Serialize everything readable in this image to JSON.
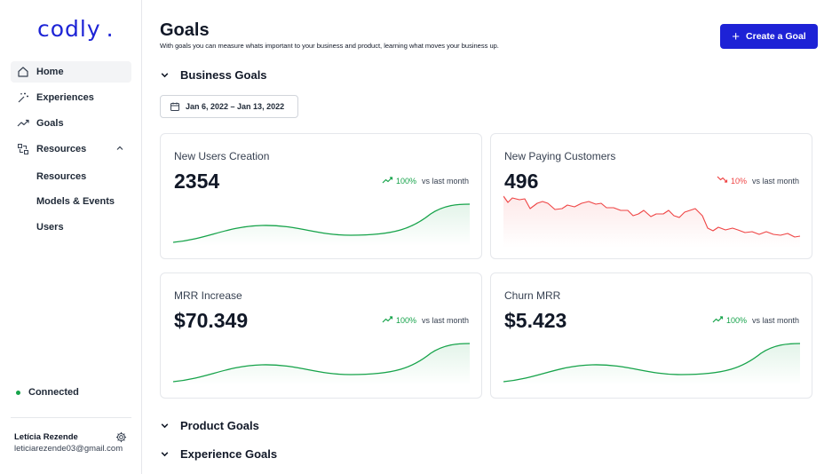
{
  "app": {
    "logo": "codly",
    "logo_dot": "."
  },
  "sidebar": {
    "items": [
      {
        "label": "Home",
        "icon": "home-icon"
      },
      {
        "label": "Experiences",
        "icon": "magic-wand-icon"
      },
      {
        "label": "Goals",
        "icon": "trending-up-icon"
      },
      {
        "label": "Resources",
        "icon": "resources-icon"
      }
    ],
    "sub_items": [
      "Resources",
      "Models & Events",
      "Users"
    ],
    "status": "Connected",
    "user": {
      "name": "Letícia Rezende",
      "email": "leticiarezende03@gmail.com"
    }
  },
  "header": {
    "title": "Goals",
    "subtitle": "With goals you can measure whats important to your business and product, learning what moves your business up.",
    "create_button": "Create a Goal"
  },
  "sections": {
    "business": "Business Goals",
    "product": "Product Goals",
    "experience": "Experience Goals"
  },
  "date_range": "Jan 6, 2022 – Jan 13, 2022",
  "cards": [
    {
      "label": "New Users Creation",
      "value": "2354",
      "trend_pct": "100%",
      "trend_text": "vs last month",
      "direction": "up"
    },
    {
      "label": "New Paying Customers",
      "value": "496",
      "trend_pct": "10%",
      "trend_text": "vs last month",
      "direction": "down"
    },
    {
      "label": "MRR Increase",
      "value": "$70.349",
      "trend_pct": "100%",
      "trend_text": "vs last month",
      "direction": "up"
    },
    {
      "label": "Churn MRR",
      "value": "$5.423",
      "trend_pct": "100%",
      "trend_text": "vs last month",
      "direction": "up"
    }
  ],
  "colors": {
    "brand": "#1d22d6",
    "positive": "#16a34a",
    "negative": "#ef4444",
    "status_dot": "#16a34a"
  }
}
